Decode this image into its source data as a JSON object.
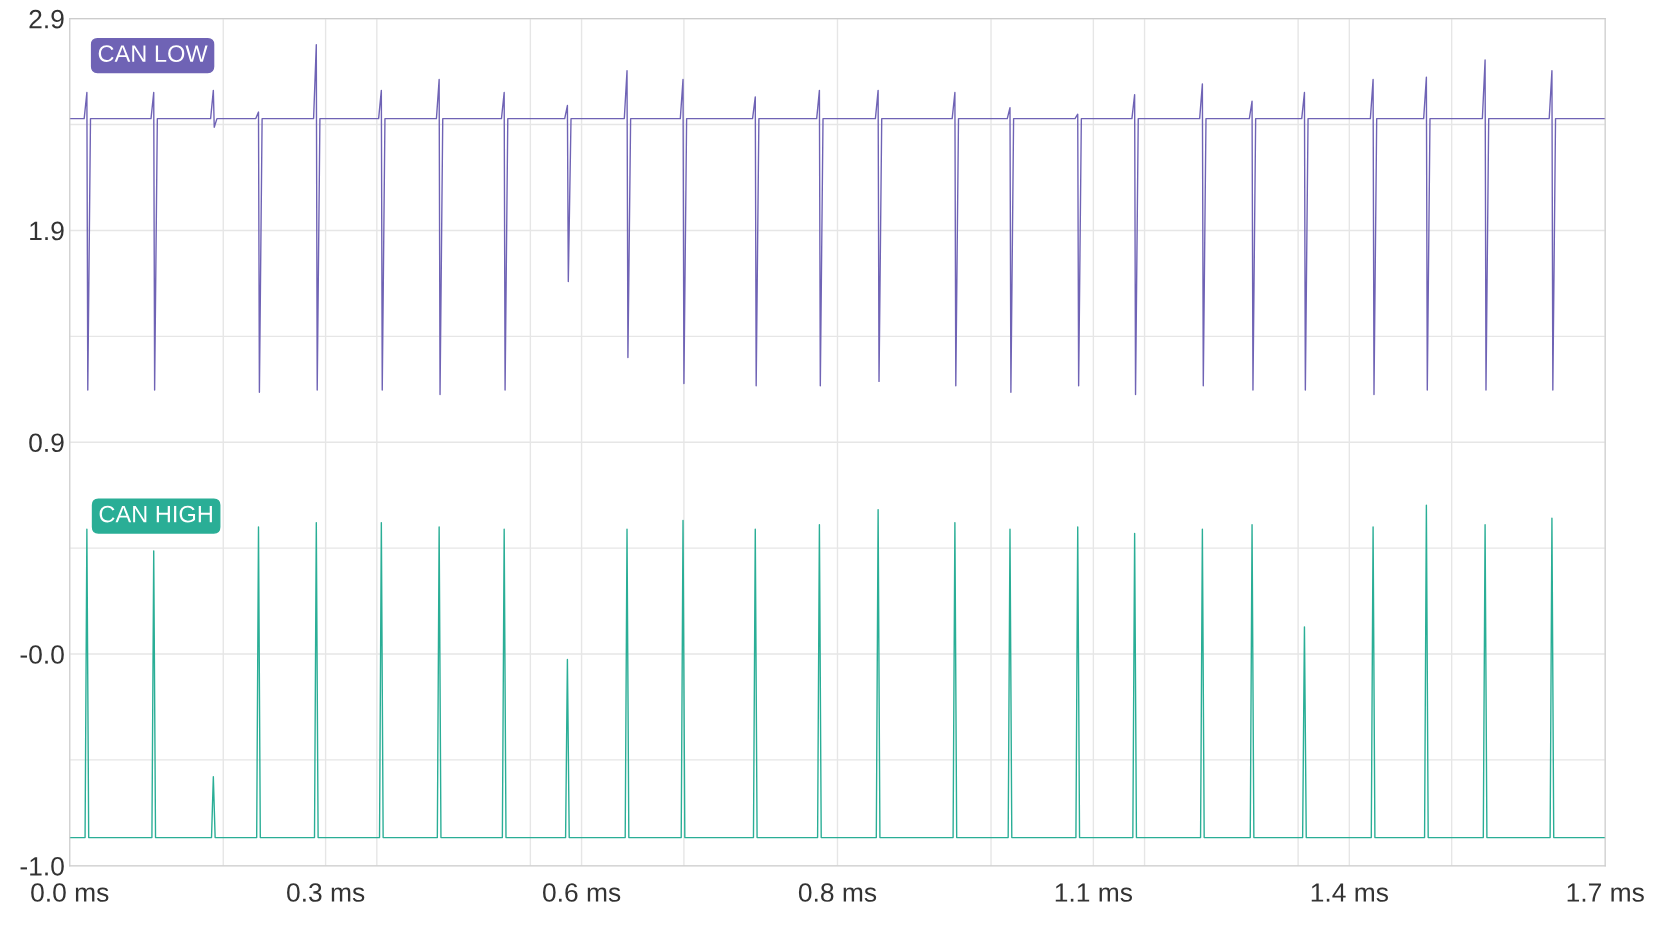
{
  "chart_data": {
    "type": "line",
    "series": [
      {
        "name": "CAN LOW",
        "color": "#6f63b5",
        "x": [
          0,
          0.016,
          0.019,
          0.02,
          0.023,
          0.09,
          0.093,
          0.094,
          0.097,
          0.156,
          0.159,
          0.16,
          0.163,
          0.206,
          0.209,
          0.21,
          0.213,
          0.27,
          0.273,
          0.274,
          0.277,
          0.342,
          0.345,
          0.346,
          0.349,
          0.406,
          0.409,
          0.41,
          0.413,
          0.478,
          0.481,
          0.482,
          0.485,
          0.548,
          0.551,
          0.552,
          0.555,
          0.614,
          0.617,
          0.618,
          0.621,
          0.676,
          0.679,
          0.68,
          0.683,
          0.756,
          0.759,
          0.76,
          0.763,
          0.827,
          0.83,
          0.831,
          0.834,
          0.892,
          0.895,
          0.896,
          0.899,
          0.977,
          0.98,
          0.981,
          0.984,
          1.038,
          1.041,
          1.042,
          1.045,
          1.113,
          1.116,
          1.117,
          1.12,
          1.176,
          1.179,
          1.18,
          1.183,
          1.251,
          1.254,
          1.255,
          1.258,
          1.306,
          1.309,
          1.31,
          1.313,
          1.364,
          1.367,
          1.368,
          1.371,
          1.44,
          1.443,
          1.444,
          1.447,
          1.499,
          1.502,
          1.503,
          1.506,
          1.564,
          1.567,
          1.568,
          1.571,
          1.638,
          1.641,
          1.642,
          1.645,
          1.7
        ],
        "values": [
          2.44,
          2.44,
          2.56,
          1.19,
          2.44,
          2.44,
          2.56,
          1.19,
          2.44,
          2.44,
          2.57,
          2.4,
          2.44,
          2.44,
          2.47,
          1.18,
          2.44,
          2.44,
          2.78,
          1.19,
          2.44,
          2.44,
          2.57,
          1.19,
          2.44,
          2.44,
          2.62,
          1.17,
          2.44,
          2.44,
          2.56,
          1.19,
          2.44,
          2.44,
          2.5,
          1.69,
          2.44,
          2.44,
          2.66,
          1.34,
          2.44,
          2.44,
          2.62,
          1.22,
          2.44,
          2.44,
          2.54,
          1.21,
          2.44,
          2.44,
          2.57,
          1.21,
          2.44,
          2.44,
          2.57,
          1.23,
          2.44,
          2.44,
          2.56,
          1.21,
          2.44,
          2.44,
          2.49,
          1.18,
          2.44,
          2.44,
          2.46,
          1.21,
          2.44,
          2.44,
          2.55,
          1.17,
          2.44,
          2.44,
          2.6,
          1.21,
          2.44,
          2.44,
          2.52,
          1.19,
          2.44,
          2.44,
          2.56,
          1.19,
          2.44,
          2.44,
          2.62,
          1.17,
          2.44,
          2.44,
          2.63,
          1.19,
          2.44,
          2.44,
          2.71,
          1.19,
          2.44,
          2.44,
          2.66,
          1.19,
          2.44,
          2.44
        ]
      },
      {
        "name": "CAN HIGH",
        "color": "#2aae96",
        "x": [
          0,
          0.017,
          0.019,
          0.021,
          0.091,
          0.093,
          0.095,
          0.157,
          0.159,
          0.161,
          0.207,
          0.209,
          0.211,
          0.271,
          0.273,
          0.275,
          0.343,
          0.345,
          0.347,
          0.407,
          0.409,
          0.411,
          0.479,
          0.481,
          0.483,
          0.549,
          0.551,
          0.553,
          0.615,
          0.617,
          0.619,
          0.677,
          0.679,
          0.681,
          0.757,
          0.759,
          0.761,
          0.828,
          0.83,
          0.832,
          0.893,
          0.895,
          0.897,
          0.978,
          0.98,
          0.982,
          1.039,
          1.041,
          1.043,
          1.114,
          1.116,
          1.118,
          1.177,
          1.179,
          1.181,
          1.252,
          1.254,
          1.256,
          1.307,
          1.309,
          1.311,
          1.365,
          1.367,
          1.369,
          1.441,
          1.443,
          1.445,
          1.5,
          1.502,
          1.504,
          1.565,
          1.567,
          1.569,
          1.639,
          1.641,
          1.643,
          1.7
        ],
        "values": [
          -0.87,
          -0.87,
          0.55,
          -0.87,
          -0.87,
          0.45,
          -0.87,
          -0.87,
          -0.59,
          -0.87,
          -0.87,
          0.56,
          -0.87,
          -0.87,
          0.58,
          -0.87,
          -0.87,
          0.58,
          -0.87,
          -0.87,
          0.56,
          -0.87,
          -0.87,
          0.55,
          -0.87,
          -0.87,
          -0.05,
          -0.87,
          -0.87,
          0.55,
          -0.87,
          -0.87,
          0.59,
          -0.87,
          -0.87,
          0.55,
          -0.87,
          -0.87,
          0.57,
          -0.87,
          -0.87,
          0.64,
          -0.87,
          -0.87,
          0.58,
          -0.87,
          -0.87,
          0.55,
          -0.87,
          -0.87,
          0.56,
          -0.87,
          -0.87,
          0.53,
          -0.87,
          -0.87,
          0.55,
          -0.87,
          -0.87,
          0.57,
          -0.87,
          -0.87,
          0.1,
          -0.87,
          -0.87,
          0.56,
          -0.87,
          -0.87,
          0.66,
          -0.87,
          -0.87,
          0.57,
          -0.87,
          -0.87,
          0.6,
          -0.87,
          -0.87
        ]
      }
    ],
    "xlim": [
      0,
      1.7
    ],
    "xticks": [
      {
        "value": 0,
        "label": "0.0 ms"
      },
      {
        "value": 0.17,
        "label": null
      },
      {
        "value": 0.2833,
        "label": "0.3 ms"
      },
      {
        "value": 0.34,
        "label": null
      },
      {
        "value": 0.51,
        "label": null
      },
      {
        "value": 0.5667,
        "label": "0.6 ms"
      },
      {
        "value": 0.68,
        "label": null
      },
      {
        "value": 0.85,
        "label": "0.8 ms"
      },
      {
        "value": 1.02,
        "label": null
      },
      {
        "value": 1.1333,
        "label": "1.1 ms"
      },
      {
        "value": 1.19,
        "label": null
      },
      {
        "value": 1.36,
        "label": null
      },
      {
        "value": 1.4167,
        "label": "1.4 ms"
      },
      {
        "value": 1.53,
        "label": null
      },
      {
        "value": 1.7,
        "label": "1.7 ms"
      }
    ],
    "ylim": [
      -1.0,
      2.9
    ],
    "yticks": [
      {
        "value": -1.0,
        "label": "-1.0"
      },
      {
        "value": -0.5125,
        "label": null
      },
      {
        "value": -0.025,
        "label": "-0.0"
      },
      {
        "value": 0.4625,
        "label": null
      },
      {
        "value": 0.95,
        "label": "0.9"
      },
      {
        "value": 1.4375,
        "label": null
      },
      {
        "value": 1.925,
        "label": "1.9"
      },
      {
        "value": 2.4125,
        "label": null
      },
      {
        "value": 2.9,
        "label": "2.9"
      }
    ],
    "grid": true,
    "legend": false,
    "marker": "none",
    "line_style": "solid"
  }
}
